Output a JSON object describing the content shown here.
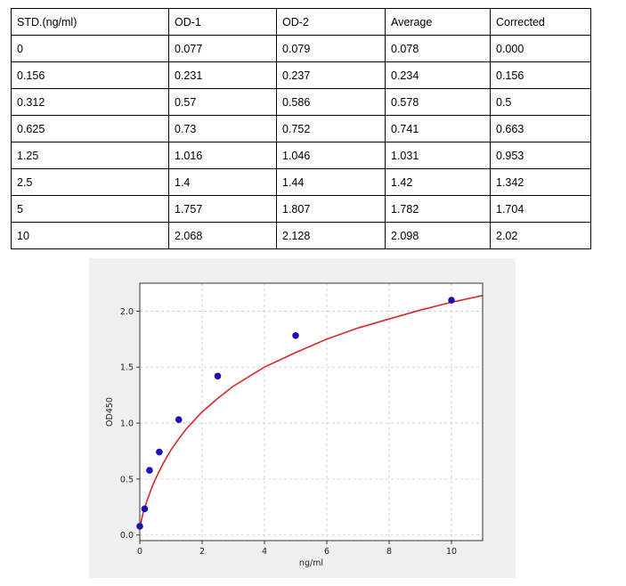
{
  "table": {
    "headers": [
      "STD.(ng/ml)",
      "OD-1",
      "OD-2",
      "Average",
      "Corrected"
    ],
    "rows": [
      [
        "0",
        "0.077",
        "0.079",
        "0.078",
        "0.000"
      ],
      [
        "0.156",
        "0.231",
        "0.237",
        "0.234",
        "0.156"
      ],
      [
        "0.312",
        "0.57",
        "0.586",
        "0.578",
        "0.5"
      ],
      [
        "0.625",
        "0.73",
        "0.752",
        "0.741",
        "0.663"
      ],
      [
        "1.25",
        "1.016",
        "1.046",
        "1.031",
        "0.953"
      ],
      [
        "2.5",
        "1.4",
        "1.44",
        "1.42",
        "1.342"
      ],
      [
        "5",
        "1.757",
        "1.807",
        "1.782",
        "1.704"
      ],
      [
        "10",
        "2.068",
        "2.128",
        "2.098",
        "2.02"
      ]
    ]
  },
  "chart_data": {
    "type": "scatter",
    "xlabel": "ng/ml",
    "ylabel": "OD450",
    "xlim": [
      0,
      11
    ],
    "ylim": [
      -0.05,
      2.25
    ],
    "xticks": [
      0,
      2,
      4,
      6,
      8,
      10
    ],
    "yticks": [
      0.0,
      0.5,
      1.0,
      1.5,
      2.0
    ],
    "grid": true,
    "points": {
      "x": [
        0,
        0.156,
        0.312,
        0.625,
        1.25,
        2.5,
        5,
        10
      ],
      "y": [
        0.078,
        0.234,
        0.578,
        0.741,
        1.031,
        1.42,
        1.782,
        2.098
      ]
    },
    "fit_curve": [
      [
        0,
        0.05
      ],
      [
        0.05,
        0.13
      ],
      [
        0.1,
        0.19
      ],
      [
        0.2,
        0.28
      ],
      [
        0.35,
        0.4
      ],
      [
        0.5,
        0.5
      ],
      [
        0.75,
        0.64
      ],
      [
        1.0,
        0.76
      ],
      [
        1.25,
        0.86
      ],
      [
        1.5,
        0.95
      ],
      [
        2.0,
        1.1
      ],
      [
        2.5,
        1.22
      ],
      [
        3.0,
        1.33
      ],
      [
        4.0,
        1.5
      ],
      [
        5.0,
        1.63
      ],
      [
        6.0,
        1.75
      ],
      [
        7.0,
        1.85
      ],
      [
        8.0,
        1.93
      ],
      [
        9.0,
        2.01
      ],
      [
        10.0,
        2.08
      ],
      [
        11.0,
        2.14
      ]
    ],
    "colors": {
      "points": "#1010c8",
      "curve": "#d62728",
      "background": "#efefef"
    }
  }
}
